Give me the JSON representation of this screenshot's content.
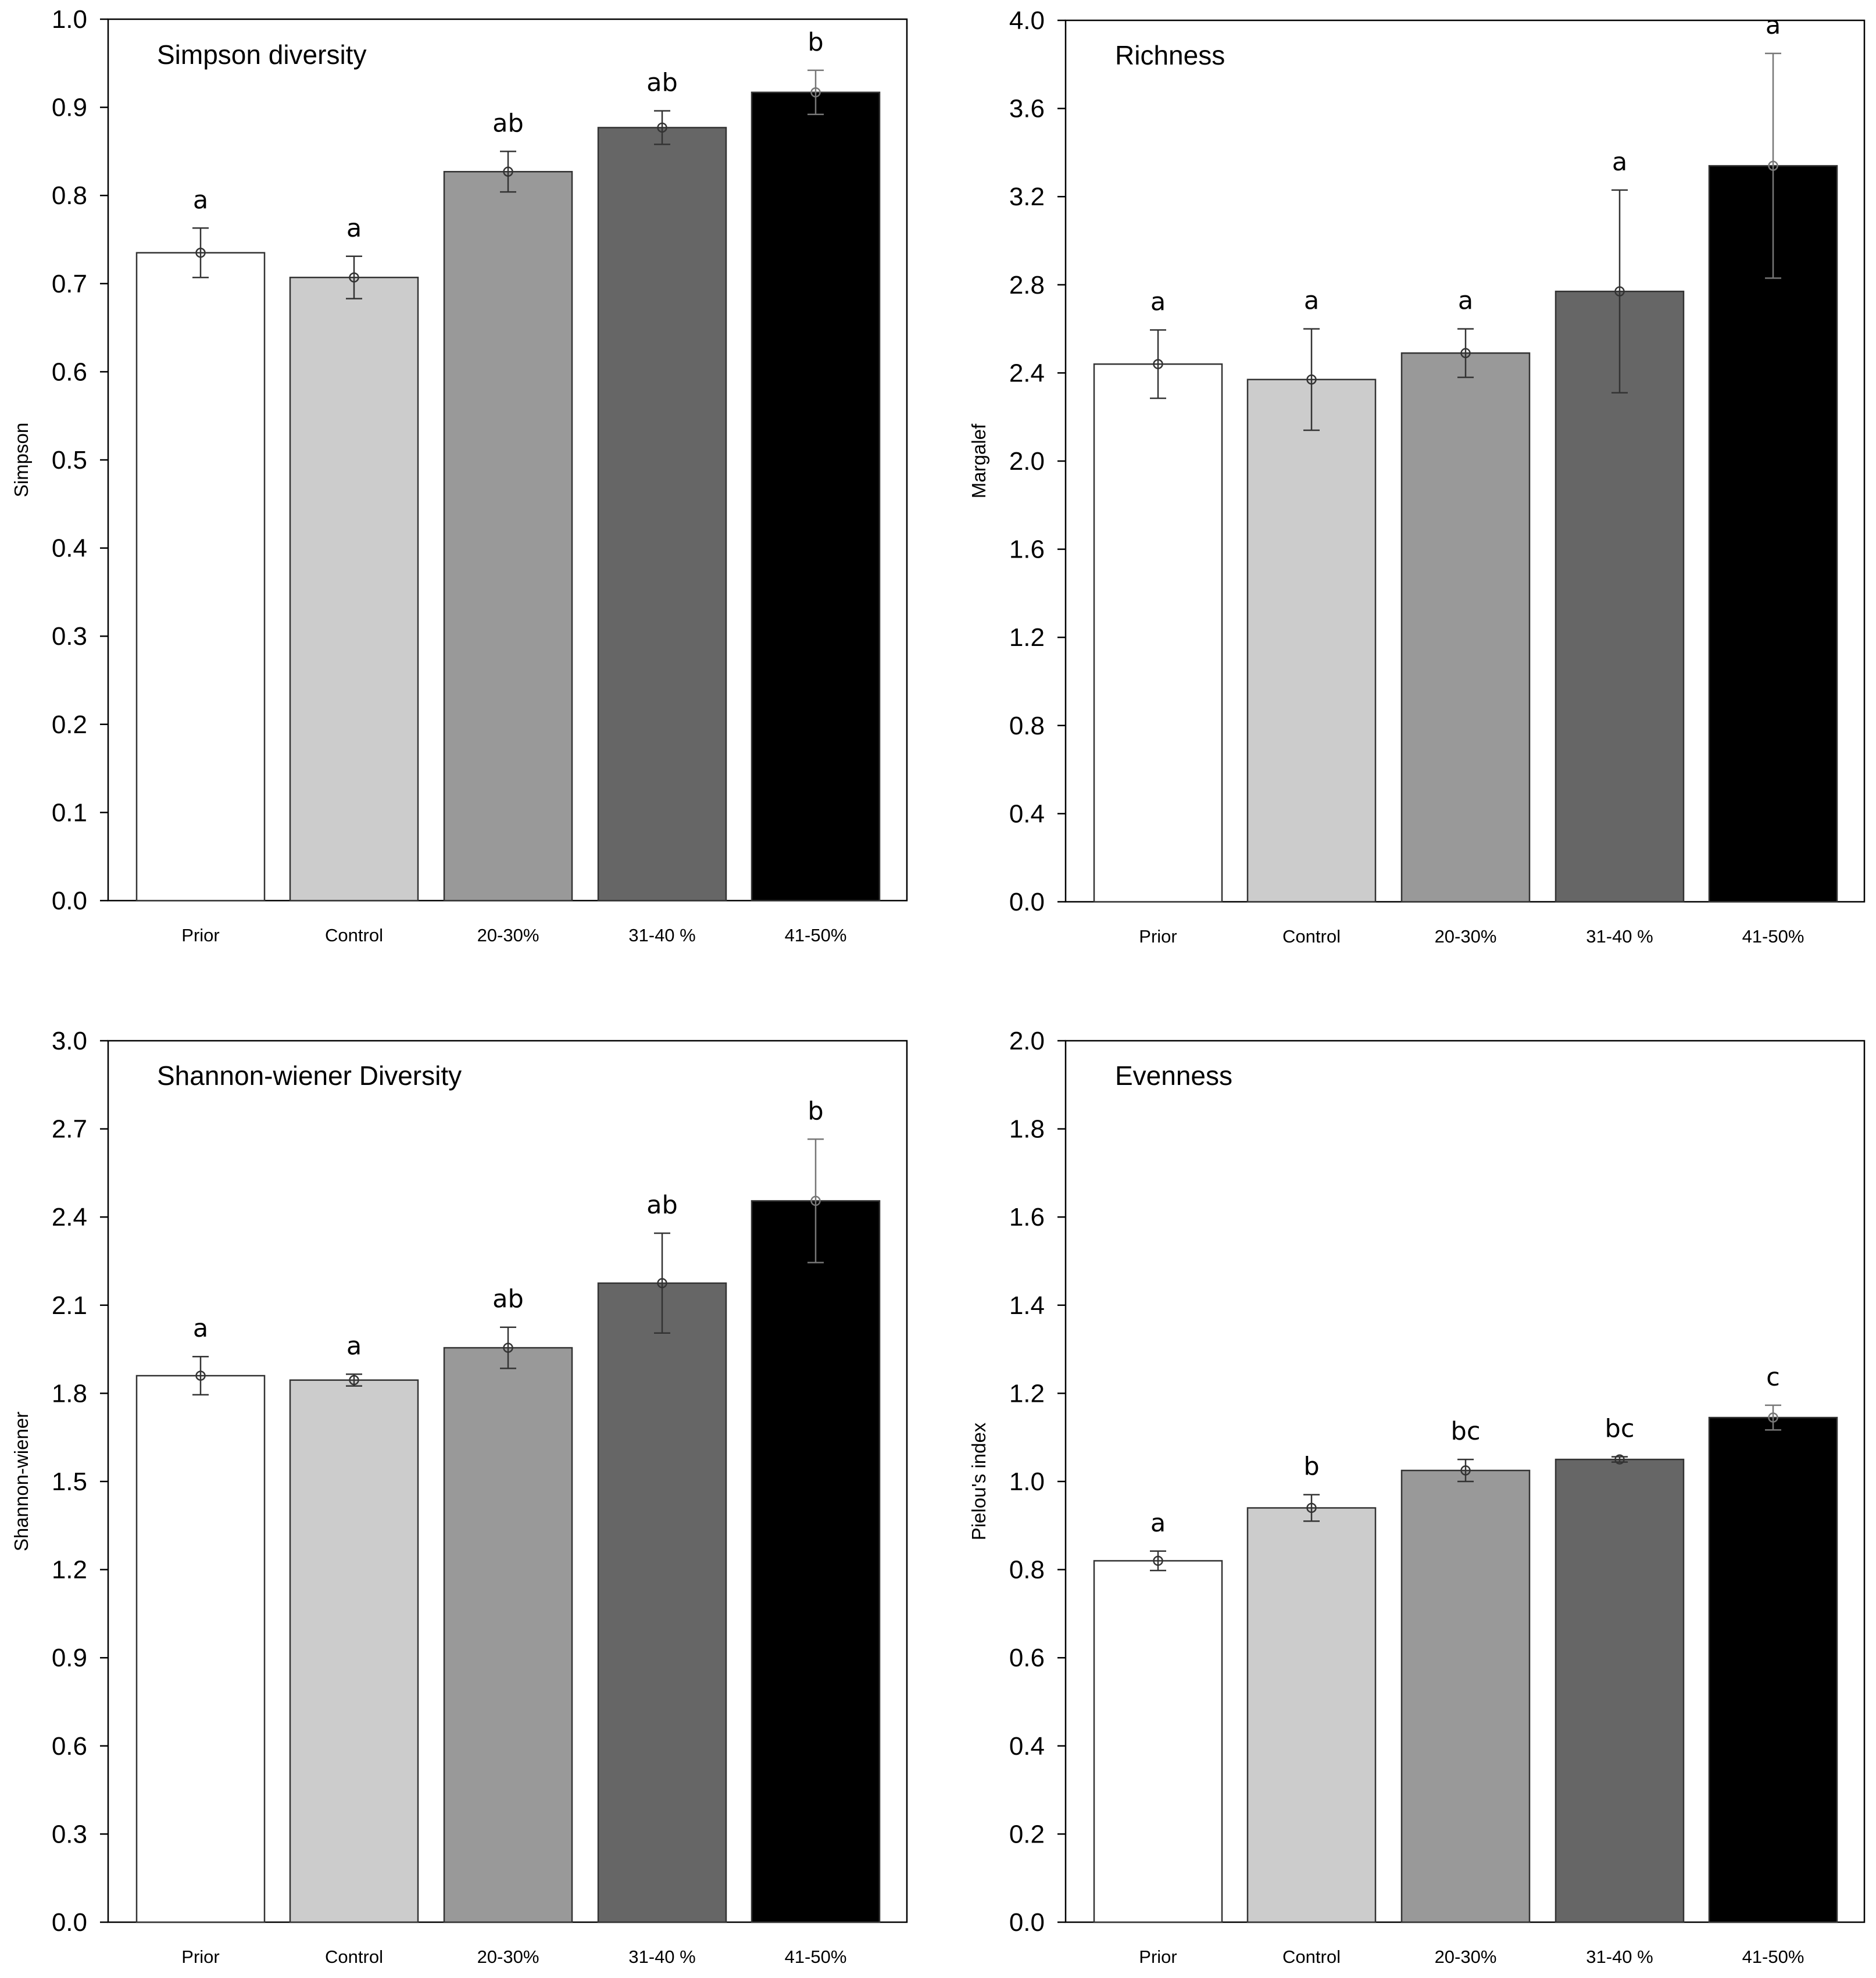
{
  "chart_data": [
    {
      "type": "bar",
      "title": "Simpson diversity",
      "xlabel": "",
      "ylabel": "Simpson",
      "ylim": [
        0,
        1.0
      ],
      "yticks": [
        "0.0",
        "0.1",
        "0.2",
        "0.3",
        "0.4",
        "0.5",
        "0.6",
        "0.7",
        "0.8",
        "0.9",
        "1.0"
      ],
      "categories": [
        "Prior",
        "Control",
        "20-30%",
        "31-40 %",
        "41-50%"
      ],
      "values": [
        0.735,
        0.707,
        0.827,
        0.877,
        0.917
      ],
      "errors": [
        0.028,
        0.024,
        0.023,
        0.019,
        0.025
      ],
      "significance": [
        "a",
        "a",
        "ab",
        "ab",
        "b"
      ],
      "colors": [
        "#ffffff",
        "#cccccc",
        "#999999",
        "#666666",
        "#000000"
      ],
      "grid": false
    },
    {
      "type": "bar",
      "title": "Richness",
      "xlabel": "",
      "ylabel": "Margalef",
      "ylim": [
        0,
        4.0
      ],
      "yticks": [
        "0.0",
        "0.4",
        "0.8",
        "1.2",
        "1.6",
        "2.0",
        "2.4",
        "2.8",
        "3.2",
        "3.6",
        "4.0"
      ],
      "categories": [
        "Prior",
        "Control",
        "20-30%",
        "31-40 %",
        "41-50%"
      ],
      "values": [
        2.44,
        2.37,
        2.49,
        2.77,
        3.34
      ],
      "errors": [
        0.155,
        0.23,
        0.11,
        0.46,
        0.51
      ],
      "significance": [
        "a",
        "a",
        "a",
        "a",
        "a"
      ],
      "colors": [
        "#ffffff",
        "#cccccc",
        "#999999",
        "#666666",
        "#000000"
      ],
      "grid": false
    },
    {
      "type": "bar",
      "title": "Shannon-wiener Diversity",
      "xlabel": "",
      "ylabel": "Shannon-wiener",
      "ylim": [
        0,
        3.0
      ],
      "yticks": [
        "0.0",
        "0.3",
        "0.6",
        "0.9",
        "1.2",
        "1.5",
        "1.8",
        "2.1",
        "2.4",
        "2.7",
        "3.0"
      ],
      "categories": [
        "Prior",
        "Control",
        "20-30%",
        "31-40 %",
        "41-50%"
      ],
      "values": [
        1.86,
        1.845,
        1.955,
        2.175,
        2.455
      ],
      "errors": [
        0.065,
        0.02,
        0.07,
        0.17,
        0.21
      ],
      "significance": [
        "a",
        "a",
        "ab",
        "ab",
        "b"
      ],
      "colors": [
        "#ffffff",
        "#cccccc",
        "#999999",
        "#666666",
        "#000000"
      ],
      "grid": false
    },
    {
      "type": "bar",
      "title": "Evenness",
      "xlabel": "",
      "ylabel": "Pielou's index",
      "ylim": [
        0,
        2.0
      ],
      "yticks": [
        "0.0",
        "0.2",
        "0.4",
        "0.6",
        "0.8",
        "1.0",
        "1.2",
        "1.4",
        "1.6",
        "1.8",
        "2.0"
      ],
      "categories": [
        "Prior",
        "Control",
        "20-30%",
        "31-40 %",
        "41-50%"
      ],
      "values": [
        0.82,
        0.94,
        1.025,
        1.05,
        1.145
      ],
      "errors": [
        0.022,
        0.03,
        0.025,
        0.006,
        0.028
      ],
      "significance": [
        "a",
        "b",
        "bc",
        "bc",
        "c"
      ],
      "colors": [
        "#ffffff",
        "#cccccc",
        "#999999",
        "#666666",
        "#000000"
      ],
      "grid": false
    }
  ]
}
